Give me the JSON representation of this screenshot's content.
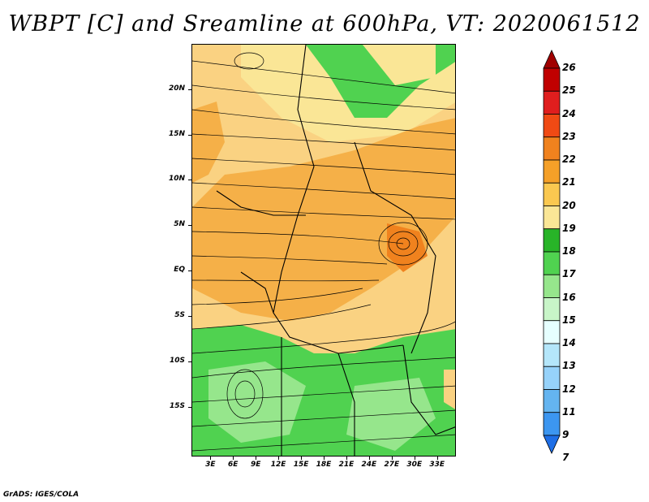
{
  "title": "WBPT [C] and Sreamline at 600hPa, VT: 2020061512",
  "credit": "GrADS: IGES/COLA",
  "lat_ticks": [
    {
      "label": "20N",
      "value": 20
    },
    {
      "label": "15N",
      "value": 15
    },
    {
      "label": "10N",
      "value": 10
    },
    {
      "label": "5N",
      "value": 5
    },
    {
      "label": "EQ",
      "value": 0
    },
    {
      "label": "5S",
      "value": -5
    },
    {
      "label": "10S",
      "value": -10
    },
    {
      "label": "15S",
      "value": -15
    }
  ],
  "lon_ticks": [
    {
      "label": "3E",
      "value": 3
    },
    {
      "label": "6E",
      "value": 6
    },
    {
      "label": "9E",
      "value": 9
    },
    {
      "label": "12E",
      "value": 12
    },
    {
      "label": "15E",
      "value": 15
    },
    {
      "label": "18E",
      "value": 18
    },
    {
      "label": "21E",
      "value": 21
    },
    {
      "label": "24E",
      "value": 24
    },
    {
      "label": "27E",
      "value": 27
    },
    {
      "label": "30E",
      "value": 30
    },
    {
      "label": "33E",
      "value": 33
    }
  ],
  "colorbar": {
    "labels": [
      "26",
      "25",
      "24",
      "23",
      "22",
      "21",
      "20",
      "19",
      "18",
      "17",
      "16",
      "15",
      "14",
      "13",
      "12",
      "11",
      "9",
      "7"
    ],
    "colors": [
      "#a00000",
      "#c00000",
      "#e01e1e",
      "#f04a14",
      "#f0821e",
      "#f5a028",
      "#fac850",
      "#fae696",
      "#28b428",
      "#50d250",
      "#96e68c",
      "#c8f5c8",
      "#e6ffff",
      "#b4e6fa",
      "#96d2fa",
      "#64b4f0",
      "#3c96f0",
      "#1e6ee6"
    ]
  },
  "colors": {
    "warm_orange": "#f0a040",
    "pale_orange": "#fad282",
    "yellow": "#fae696",
    "green": "#50d250",
    "light_green": "#96e68c"
  }
}
